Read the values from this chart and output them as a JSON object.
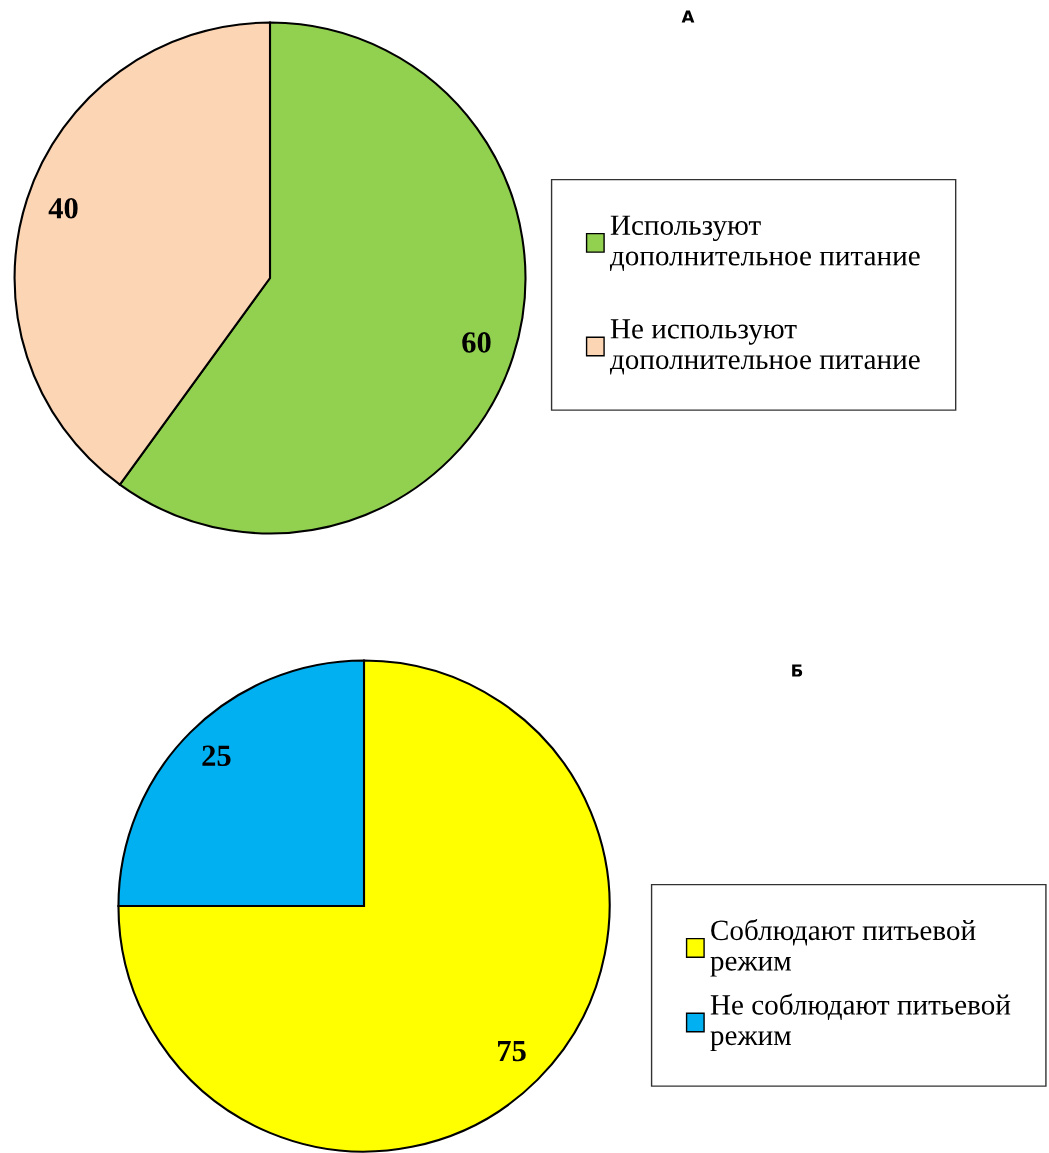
{
  "chart_data": [
    {
      "type": "pie",
      "title": "А",
      "categories": [
        "Используют\nдополнительное питание",
        "Не используют\nдополнительное питание"
      ],
      "values": [
        60,
        40
      ],
      "colors": [
        "#92d050",
        "#fcd5b5"
      ],
      "data_labels": true,
      "legend": "right"
    },
    {
      "type": "pie",
      "title": "Б",
      "categories": [
        "Соблюдают питьевой\nрежим",
        "Не соблюдают питьевой\nрежим"
      ],
      "values": [
        75,
        25
      ],
      "colors": [
        "#ffff00",
        "#00b0f0"
      ],
      "data_labels": true,
      "legend": "right"
    }
  ]
}
